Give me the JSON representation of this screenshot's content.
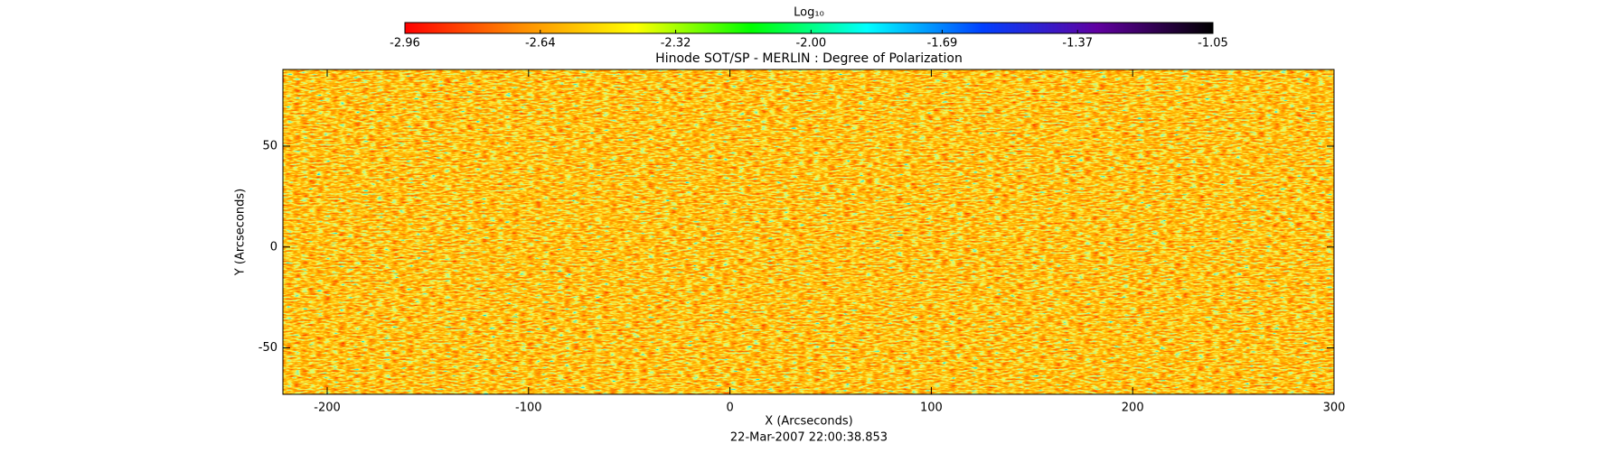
{
  "chart_data": {
    "type": "image",
    "title": "Hinode SOT/SP - MERLIN : Degree of Polarization",
    "x_label": "X (Arcseconds)",
    "y_label": "Y (Arcseconds)",
    "date": "22-Mar-2007 22:00:38.853",
    "xlim": [
      -222,
      300
    ],
    "ylim": [
      -73,
      88
    ],
    "xticks": [
      -200,
      -100,
      0,
      100,
      200,
      300
    ],
    "yticks": [
      -50,
      0,
      50
    ],
    "colorbar_label": "Log₁₀",
    "colorbar_lim": [
      -2.96,
      -1.05
    ],
    "colorbar_ticks": [
      -2.96,
      -2.64,
      -2.32,
      {
        "value": -2.0,
        "label": "-2.00"
      },
      -1.69,
      -1.37,
      -1.05
    ],
    "colorbar_colors": [
      "#ff0000",
      "#ff8c00",
      "#ffff00",
      "#00ff00",
      "#00ffff",
      "#0040ff",
      "#6000a0",
      "#000000"
    ]
  }
}
